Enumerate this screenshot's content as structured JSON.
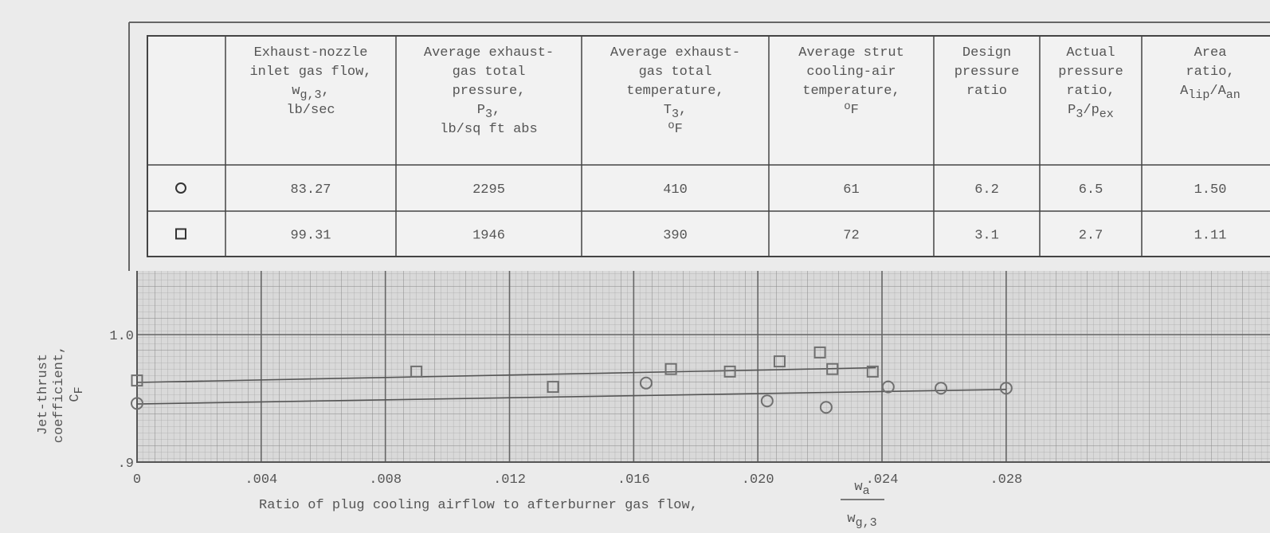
{
  "table": {
    "headers": [
      [
        [
          "Exhaust-nozzle"
        ],
        [
          "inlet gas flow,"
        ],
        [
          {
            "text": "w"
          },
          {
            "text": "g,3",
            "shift": "sub"
          },
          {
            "text": ","
          }
        ],
        [
          "lb/sec"
        ]
      ],
      [
        [
          "Average exhaust-"
        ],
        [
          "gas total"
        ],
        [
          "pressure,"
        ],
        [
          {
            "text": "P"
          },
          {
            "text": "3",
            "shift": "sub"
          },
          {
            "text": ","
          }
        ],
        [
          "lb/sq ft abs"
        ]
      ],
      [
        [
          "Average exhaust-"
        ],
        [
          "gas total"
        ],
        [
          "temperature,"
        ],
        [
          {
            "text": "T"
          },
          {
            "text": "3",
            "shift": "sub"
          },
          {
            "text": ","
          }
        ],
        [
          {
            "text": "o",
            "shift": "sup"
          },
          {
            "text": "F"
          }
        ]
      ],
      [
        [
          "Average strut"
        ],
        [
          "cooling-air"
        ],
        [
          "temperature,"
        ],
        [
          {
            "text": "o",
            "shift": "sup"
          },
          {
            "text": "F"
          }
        ]
      ],
      [
        [
          "Design"
        ],
        [
          "pressure"
        ],
        [
          "ratio"
        ]
      ],
      [
        [
          "Actual"
        ],
        [
          "pressure"
        ],
        [
          "ratio,"
        ],
        [
          {
            "text": "P"
          },
          {
            "text": "3",
            "shift": "sub"
          },
          {
            "text": "/p"
          },
          {
            "text": "ex",
            "shift": "sub"
          }
        ]
      ],
      [
        [
          "Area"
        ],
        [
          "ratio,"
        ],
        [
          {
            "text": "A"
          },
          {
            "text": "lip",
            "shift": "sub"
          },
          {
            "text": "/A"
          },
          {
            "text": "an",
            "shift": "sub"
          }
        ]
      ]
    ],
    "rows": [
      [
        "83.27",
        "2295",
        "410",
        "61",
        "6.2",
        "6.5",
        "1.50"
      ],
      [
        "99.31",
        "1946",
        "390",
        "72",
        "3.1",
        "2.7",
        "1.11"
      ]
    ]
  },
  "chart_data": {
    "type": "scatter",
    "y_label": [
      [
        "Jet-thrust"
      ],
      [
        "coefficient,"
      ],
      [
        {
          "text": "C"
        },
        {
          "text": "F",
          "shift": "sub"
        }
      ]
    ],
    "x_label": "Ratio of plug cooling airflow to afterburner gas flow,",
    "x_label_fraction": {
      "numerator": [
        {
          "text": "w"
        },
        {
          "text": "a",
          "shift": "sub"
        }
      ],
      "denominator": [
        {
          "text": "w"
        },
        {
          "text": "g,3",
          "shift": "sub"
        }
      ]
    },
    "xlim": [
      0,
      0.0365
    ],
    "ylim": [
      0.9,
      1.05
    ],
    "xticks": [
      0,
      {
        "value": 0.004,
        "label": ".004"
      },
      {
        "value": 0.008,
        "label": ".008"
      },
      {
        "value": 0.012,
        "label": ".012"
      },
      {
        "value": 0.016,
        "label": ".016"
      },
      {
        "value": 0.02,
        "label": ".020"
      },
      {
        "value": 0.024,
        "label": ".024"
      },
      {
        "value": 0.028,
        "label": ".028"
      }
    ],
    "yticks": [
      {
        "value": 0.9,
        "label": ".9"
      },
      {
        "value": 1.0,
        "label": "1.0"
      }
    ],
    "grid": true,
    "series": [
      {
        "marker": "circle",
        "color": "#707070",
        "x": [
          0,
          0.0164,
          0.0203,
          0.0222,
          0.0242,
          0.0259,
          0.028
        ],
        "values": [
          0.946,
          0.962,
          0.948,
          0.943,
          0.959,
          0.958,
          0.958
        ],
        "fit_x": [
          0,
          0.028
        ],
        "fit_y": [
          0.9456,
          0.957
        ]
      },
      {
        "marker": "square",
        "color": "#707070",
        "x": [
          0,
          0.009,
          0.0134,
          0.0172,
          0.0191,
          0.0207,
          0.022,
          0.0224,
          0.0237
        ],
        "values": [
          0.964,
          0.971,
          0.959,
          0.973,
          0.971,
          0.979,
          0.986,
          0.973,
          0.971
        ],
        "fit_x": [
          0,
          0.0238
        ],
        "fit_y": [
          0.9625,
          0.974
        ]
      }
    ]
  }
}
